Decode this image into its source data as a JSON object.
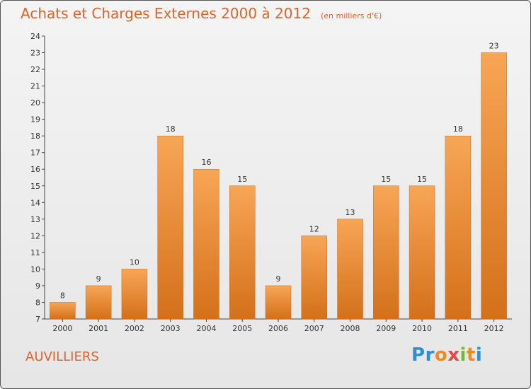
{
  "header": {
    "title": "Achats et Charges Externes 2000 à 2012",
    "subtitle": "(en milliers d'€)"
  },
  "place_name": "AUVILLIERS",
  "logo": {
    "text": "Proxiti"
  },
  "colors": {
    "bar_top": "#f7a656",
    "bar_bottom": "#d4701a",
    "title": "#e0632a"
  },
  "chart_data": {
    "type": "bar",
    "title": "Achats et Charges Externes 2000 à 2012",
    "subtitle": "(en milliers d'€)",
    "categories": [
      "2000",
      "2001",
      "2002",
      "2003",
      "2004",
      "2005",
      "2006",
      "2007",
      "2008",
      "2009",
      "2010",
      "2011",
      "2012"
    ],
    "values": [
      8,
      9,
      10,
      18,
      16,
      15,
      9,
      12,
      13,
      15,
      15,
      18,
      23
    ],
    "xlabel": "",
    "ylabel": "",
    "ylim": [
      7,
      24
    ],
    "yticks": [
      7,
      8,
      9,
      10,
      11,
      12,
      13,
      14,
      15,
      16,
      17,
      18,
      19,
      20,
      21,
      22,
      23,
      24
    ],
    "grid": false,
    "data_labels": true
  }
}
